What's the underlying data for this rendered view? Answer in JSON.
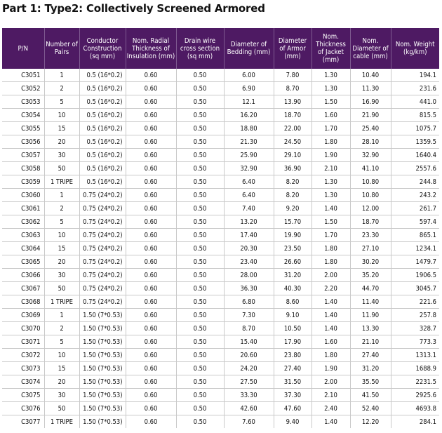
{
  "title": "Part 1: Type2: Collectively Screened Armored",
  "columns": [
    "P/N",
    "Number of Pairs",
    "Conductor Construction (sq mm)",
    "Nom. Radial Thickness of Insulation (mm)",
    "Drain wire cross section (sq mm)",
    "Diameter of Bedding (mm)",
    "Diameter of Armor (mm)",
    "Nom. Thickness of Jacket (mm)",
    "Nom. Diameter of cable (mm)",
    "Nom. Weight (kg/km)"
  ],
  "rows": [
    [
      "C3051",
      "1",
      "0.5 (16*0.2)",
      "0.60",
      "0.50",
      "6.00",
      "7.80",
      "1.30",
      "10.40",
      "194.1"
    ],
    [
      "C3052",
      "2",
      "0.5 (16*0.2)",
      "0.60",
      "0.50",
      "6.90",
      "8.70",
      "1.30",
      "11.30",
      "231.6"
    ],
    [
      "C3053",
      "5",
      "0.5 (16*0.2)",
      "0.60",
      "0.50",
      "12.1",
      "13.90",
      "1.50",
      "16.90",
      "441.0"
    ],
    [
      "C3054",
      "10",
      "0.5 (16*0.2)",
      "0.60",
      "0.50",
      "16.20",
      "18.70",
      "1.60",
      "21.90",
      "815.5"
    ],
    [
      "C3055",
      "15",
      "0.5 (16*0.2)",
      "0.60",
      "0.50",
      "18.80",
      "22.00",
      "1.70",
      "25.40",
      "1075.7"
    ],
    [
      "C3056",
      "20",
      "0.5 (16*0.2)",
      "0.60",
      "0.50",
      "21.30",
      "24.50",
      "1.80",
      "28.10",
      "1359.5"
    ],
    [
      "C3057",
      "30",
      "0.5 (16*0.2)",
      "0.60",
      "0.50",
      "25.90",
      "29.10",
      "1.90",
      "32.90",
      "1640.4"
    ],
    [
      "C3058",
      "50",
      "0.5 (16*0.2)",
      "0.60",
      "0.50",
      "32.90",
      "36.90",
      "2.10",
      "41.10",
      "2557.6"
    ],
    [
      "C3059",
      "1 TRIPE",
      "0.5 (16*0.2)",
      "0.60",
      "0.50",
      "6.40",
      "8.20",
      "1.30",
      "10.80",
      "244.8"
    ],
    [
      "C3060",
      "1",
      "0.75 (24*0.2)",
      "0.60",
      "0.50",
      "6.40",
      "8.20",
      "1.30",
      "10.80",
      "243.2"
    ],
    [
      "C3061",
      "2",
      "0.75 (24*0.2)",
      "0.60",
      "0.50",
      "7.40",
      "9.20",
      "1.40",
      "12.00",
      "261.7"
    ],
    [
      "C3062",
      "5",
      "0.75 (24*0.2)",
      "0.60",
      "0.50",
      "13.20",
      "15.70",
      "1.50",
      "18.70",
      "597.4"
    ],
    [
      "C3063",
      "10",
      "0.75 (24*0.2)",
      "0.60",
      "0.50",
      "17.40",
      "19.90",
      "1.70",
      "23.30",
      "865.1"
    ],
    [
      "C3064",
      "15",
      "0.75 (24*0.2)",
      "0.60",
      "0.50",
      "20.30",
      "23.50",
      "1.80",
      "27.10",
      "1234.1"
    ],
    [
      "C3065",
      "20",
      "0.75 (24*0.2)",
      "0.60",
      "0.50",
      "23.40",
      "26.60",
      "1.80",
      "30.20",
      "1479.7"
    ],
    [
      "C3066",
      "30",
      "0.75 (24*0.2)",
      "0.60",
      "0.50",
      "28.00",
      "31.20",
      "2.00",
      "35.20",
      "1906.5"
    ],
    [
      "C3067",
      "50",
      "0.75 (24*0.2)",
      "0.60",
      "0.50",
      "36.30",
      "40.30",
      "2.20",
      "44.70",
      "3045.7"
    ],
    [
      "C3068",
      "1 TRIPE",
      "0.75 (24*0.2)",
      "0.60",
      "0.50",
      "6.80",
      "8.60",
      "1.40",
      "11.40",
      "221.6"
    ],
    [
      "C3069",
      "1",
      "1.50 (7*0.53)",
      "0.60",
      "0.50",
      "7.30",
      "9.10",
      "1.40",
      "11.90",
      "257.8"
    ],
    [
      "C3070",
      "2",
      "1.50 (7*0.53)",
      "0.60",
      "0.50",
      "8.70",
      "10.50",
      "1.40",
      "13.30",
      "328.7"
    ],
    [
      "C3071",
      "5",
      "1.50 (7*0.53)",
      "0.60",
      "0.50",
      "15.40",
      "17.90",
      "1.60",
      "21.10",
      "773.3"
    ],
    [
      "C3072",
      "10",
      "1.50 (7*0.53)",
      "0.60",
      "0.50",
      "20.60",
      "23.80",
      "1.80",
      "27.40",
      "1313.1"
    ],
    [
      "C3073",
      "15",
      "1.50 (7*0.53)",
      "0.60",
      "0.50",
      "24.20",
      "27.40",
      "1.90",
      "31.20",
      "1688.9"
    ],
    [
      "C3074",
      "20",
      "1.50 (7*0.53)",
      "0.60",
      "0.50",
      "27.50",
      "31.50",
      "2.00",
      "35.50",
      "2231.5"
    ],
    [
      "C3075",
      "30",
      "1.50 (7*0.53)",
      "0.60",
      "0.50",
      "33.30",
      "37.30",
      "2.10",
      "41.50",
      "2925.6"
    ],
    [
      "C3076",
      "50",
      "1.50 (7*0.53)",
      "0.60",
      "0.50",
      "42.60",
      "47.60",
      "2.40",
      "52.40",
      "4693.8"
    ],
    [
      "C3077",
      "1 TRIPE",
      "1.50 (7*0.53)",
      "0.60",
      "0.50",
      "7.60",
      "9.40",
      "1.40",
      "12.20",
      "284.1"
    ]
  ]
}
